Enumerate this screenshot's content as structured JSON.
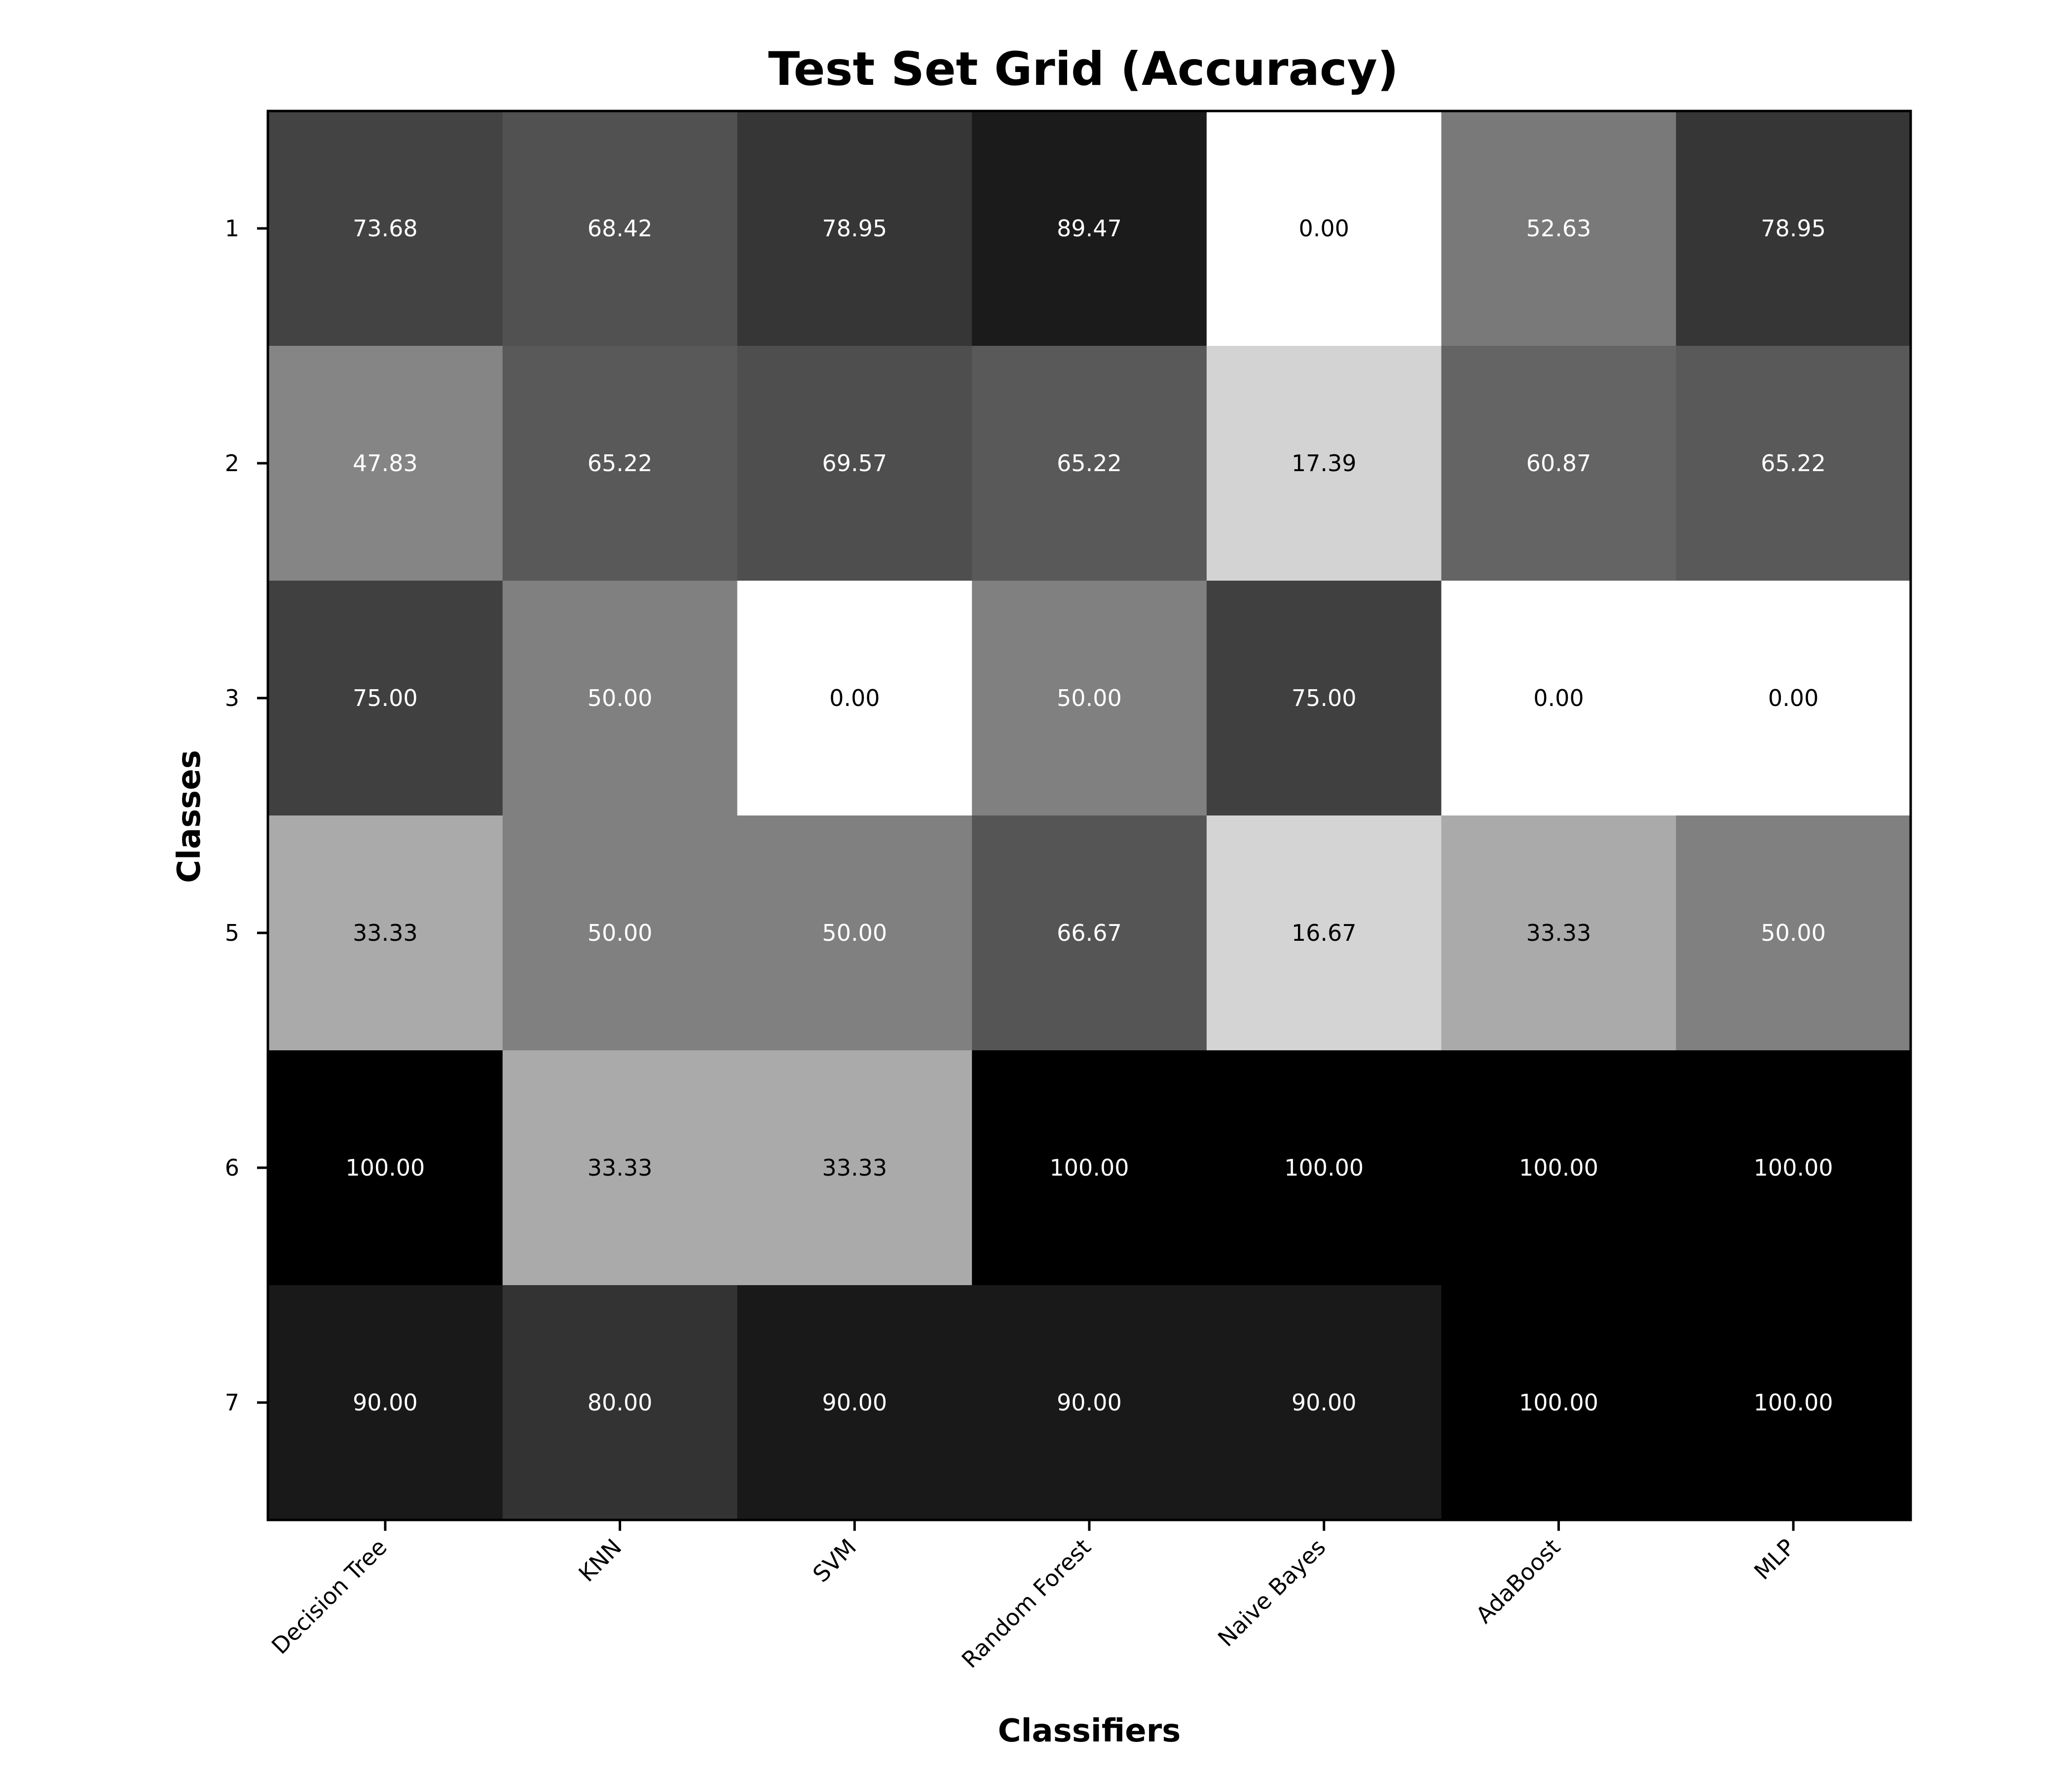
{
  "chart_data": {
    "type": "heatmap",
    "title": "Test Set Grid (Accuracy)",
    "xlabel": "Classifiers",
    "ylabel": "Classes",
    "x_categories": [
      "Decision Tree",
      "KNN",
      "SVM",
      "Random Forest",
      "Naive Bayes",
      "AdaBoost",
      "MLP"
    ],
    "y_categories": [
      "1",
      "2",
      "3",
      "5",
      "6",
      "7"
    ],
    "values": [
      [
        73.68,
        68.42,
        78.95,
        89.47,
        0.0,
        52.63,
        78.95
      ],
      [
        47.83,
        65.22,
        69.57,
        65.22,
        17.39,
        60.87,
        65.22
      ],
      [
        75.0,
        50.0,
        0.0,
        50.0,
        75.0,
        0.0,
        0.0
      ],
      [
        33.33,
        50.0,
        50.0,
        66.67,
        16.67,
        33.33,
        50.0
      ],
      [
        100.0,
        33.33,
        33.33,
        100.0,
        100.0,
        100.0,
        100.0
      ],
      [
        90.0,
        80.0,
        90.0,
        90.0,
        90.0,
        100.0,
        100.0
      ]
    ],
    "value_range": [
      0,
      100
    ],
    "colormap": "gray_r",
    "value_format": "2 decimals",
    "grid": false,
    "legend": "none",
    "colors": {
      "low": "#ffffff",
      "high": "#000000",
      "frame": "#000000"
    }
  }
}
